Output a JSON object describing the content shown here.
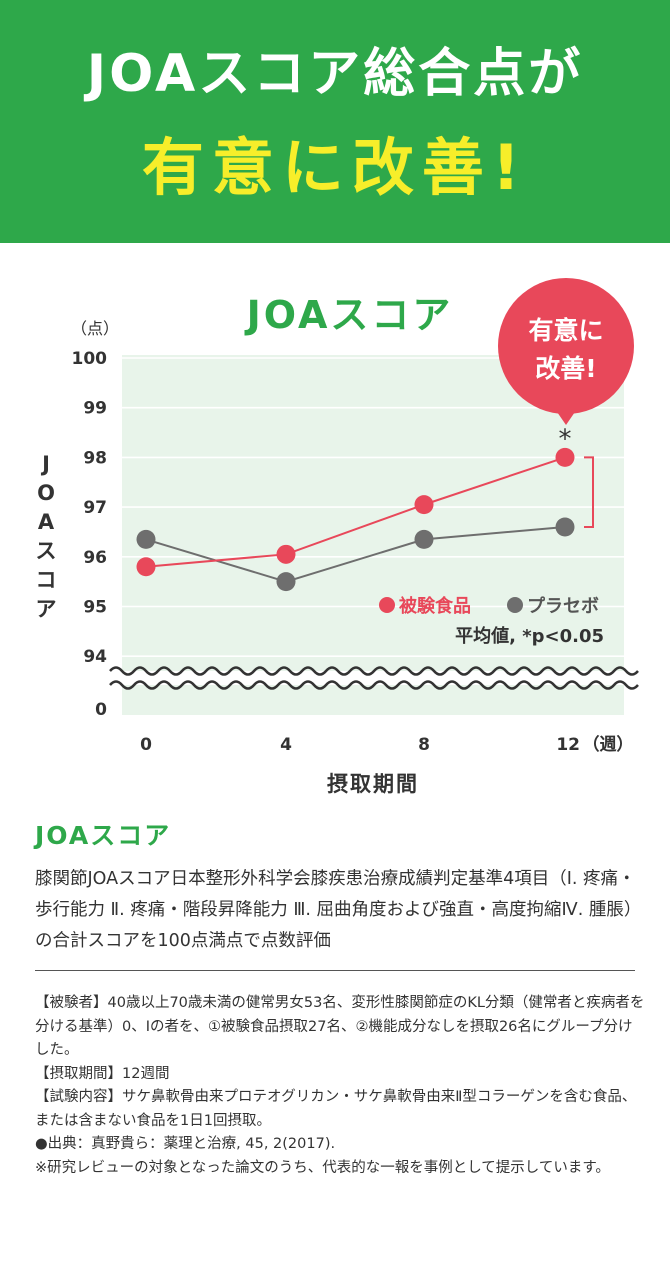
{
  "banner": {
    "line1": "JOAスコア総合点が",
    "line2": "有意に改善!"
  },
  "chart_data": {
    "type": "line",
    "title": "JOAスコア",
    "ylabel": "JOAスコア",
    "yunit": "（点）",
    "xlabel": "摂取期間",
    "xunit": "（週）",
    "x": [
      0,
      4,
      8,
      12
    ],
    "x_tick_labels": [
      "0",
      "4",
      "8",
      "12"
    ],
    "y_ticks": [
      "100",
      "99",
      "98",
      "97",
      "96",
      "95",
      "94",
      "0"
    ],
    "ylim": [
      94,
      100
    ],
    "axis_break": "between 94 and 0",
    "grid": true,
    "series": [
      {
        "name": "被験食品",
        "color": "#e8485a",
        "values": [
          95.8,
          96.05,
          97.05,
          98.0
        ]
      },
      {
        "name": "プラセボ",
        "color": "#6e6e6e",
        "values": [
          96.35,
          95.5,
          96.35,
          96.6
        ]
      }
    ],
    "legend_position": "bottom-right",
    "note": "平均値, *p<0.05",
    "significance_marker": "*",
    "callout": [
      "有意に",
      "改善!"
    ]
  },
  "section": {
    "title": "JOAスコア",
    "description": "膝関節JOAスコア日本整形外科学会膝疾患治療成績判定基準4項目（Ⅰ. 疼痛・歩行能力 Ⅱ. 疼痛・階段昇降能力 Ⅲ. 屈曲角度および強直・高度拘縮Ⅳ. 腫脹）の合計スコアを100点満点で点数評価"
  },
  "notes": [
    "【被験者】40歳以上70歳未満の健常男女53名、変形性膝関節症のKL分類（健常者と疾病者を分ける基準）0、Ⅰの者を、①被験食品摂取27名、②機能成分なしを摂取26名にグループ分けした。",
    "【摂取期間】12週間",
    "【試験内容】サケ鼻軟骨由来プロテオグリカン・サケ鼻軟骨由来Ⅱ型コラーゲンを含む食品、または含まない食品を1日1回摂取。",
    "●出典：真野貴ら：薬理と治療, 45, 2(2017).",
    "※研究レビューの対象となった論文のうち、代表的な一報を事例として提示しています。"
  ],
  "colors": {
    "brand_green": "#2ea84a",
    "highlight_yellow": "#f7ee2a",
    "test_red": "#e8485a",
    "placebo_gray": "#6e6e6e",
    "plot_bg": "#e8f4ea"
  }
}
